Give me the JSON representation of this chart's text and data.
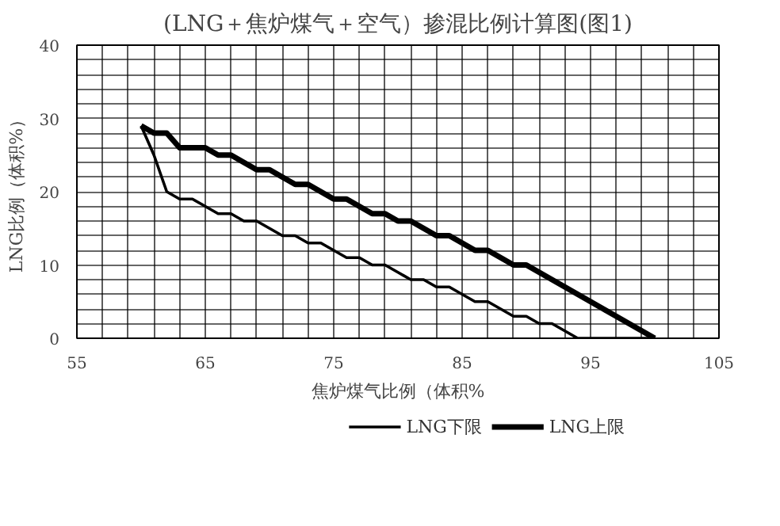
{
  "chart_data": {
    "type": "line",
    "title": "(LNG＋焦炉煤气＋空气）掺混比例计算图(图1)",
    "xlabel": "焦炉煤气比例（体积%",
    "ylabel": "LNG比例（体积%）",
    "x": [
      60,
      61,
      62,
      63,
      64,
      65,
      66,
      67,
      68,
      69,
      70,
      71,
      72,
      73,
      74,
      75,
      76,
      77,
      78,
      79,
      80,
      81,
      82,
      83,
      84,
      85,
      86,
      87,
      88,
      89,
      90,
      91,
      92,
      93,
      94,
      95,
      96,
      97,
      98,
      99,
      100
    ],
    "series": [
      {
        "name": "LNG下限",
        "color": "#000000",
        "values": [
          29,
          25,
          20,
          19,
          19,
          18,
          17,
          17,
          16,
          16,
          15,
          14,
          14,
          13,
          13,
          12,
          11,
          11,
          10,
          10,
          9,
          8,
          8,
          7,
          7,
          6,
          5,
          5,
          4,
          3,
          3,
          2,
          2,
          1,
          0,
          0,
          0,
          0,
          0,
          0,
          0
        ]
      },
      {
        "name": "LNG上限",
        "color": "#000000",
        "values": [
          29,
          28,
          28,
          26,
          26,
          26,
          25,
          25,
          24,
          23,
          23,
          22,
          21,
          21,
          20,
          19,
          19,
          18,
          17,
          17,
          16,
          16,
          15,
          14,
          14,
          13,
          12,
          12,
          11,
          10,
          10,
          9,
          8,
          7,
          6,
          5,
          4,
          3,
          2,
          1,
          0
        ]
      }
    ],
    "xlim": [
      55,
      105
    ],
    "ylim": [
      0,
      40
    ],
    "xticks": [
      55,
      {
        "value": 57,
        "label": null
      },
      {
        "value": 59,
        "label": null
      },
      {
        "value": 61,
        "label": null
      },
      {
        "value": 63,
        "label": null
      },
      65,
      {
        "value": 67,
        "label": null
      },
      {
        "value": 69,
        "label": null
      },
      {
        "value": 71,
        "label": null
      },
      {
        "value": 73,
        "label": null
      },
      75,
      {
        "value": 77,
        "label": null
      },
      {
        "value": 79,
        "label": null
      },
      {
        "value": 81,
        "label": null
      },
      {
        "value": 83,
        "label": null
      },
      85,
      {
        "value": 87,
        "label": null
      },
      {
        "value": 89,
        "label": null
      },
      {
        "value": 91,
        "label": null
      },
      {
        "value": 93,
        "label": null
      },
      95,
      {
        "value": 97,
        "label": null
      },
      {
        "value": 99,
        "label": null
      },
      {
        "value": 101,
        "label": null
      },
      {
        "value": 103,
        "label": null
      },
      105
    ],
    "yticks": [
      0,
      {
        "value": 2,
        "label": null
      },
      {
        "value": 4,
        "label": null
      },
      {
        "value": 6,
        "label": null
      },
      {
        "value": 8,
        "label": null
      },
      10,
      {
        "value": 12,
        "label": null
      },
      {
        "value": 14,
        "label": null
      },
      {
        "value": 16,
        "label": null
      },
      {
        "value": 18,
        "label": null
      },
      20,
      {
        "value": 22,
        "label": null
      },
      {
        "value": 24,
        "label": null
      },
      {
        "value": 26,
        "label": null
      },
      {
        "value": 28,
        "label": null
      },
      30,
      {
        "value": 32,
        "label": null
      },
      {
        "value": 34,
        "label": null
      },
      {
        "value": 36,
        "label": null
      },
      {
        "value": 38,
        "label": null
      },
      40
    ],
    "grid": true,
    "legend": "bottom",
    "marker": "none",
    "line_style": "solid"
  }
}
